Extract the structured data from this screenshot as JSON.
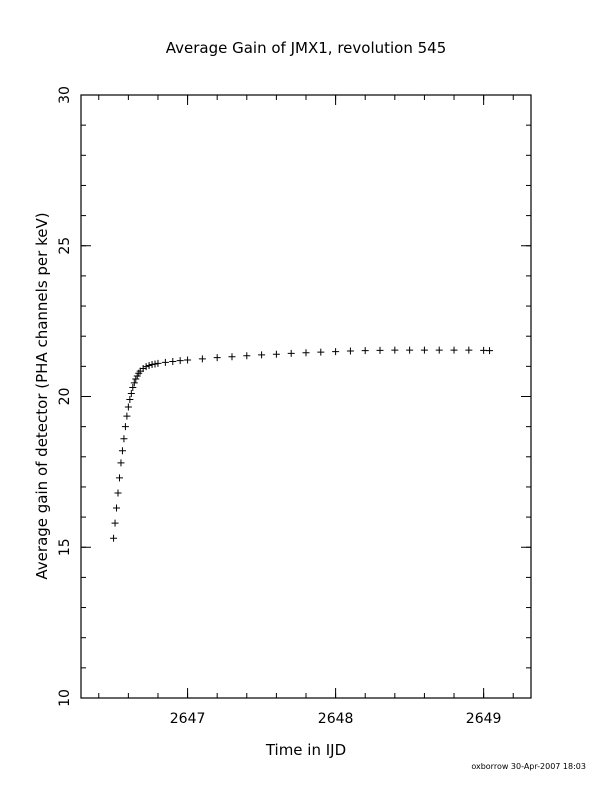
{
  "chart_data": {
    "type": "scatter",
    "marker": "plus",
    "title": "Average Gain of JMX1, revolution 545",
    "xlabel": "Time in IJD",
    "ylabel": "Average gain of detector (PHA channels per keV)",
    "xlim": [
      2646.28,
      2649.32
    ],
    "ylim": [
      10,
      30
    ],
    "xticks": [
      {
        "value": 2647,
        "label": "2647"
      },
      {
        "value": 2648,
        "label": "2648"
      },
      {
        "value": 2649,
        "label": "2649"
      }
    ],
    "yticks": [
      {
        "value": 10,
        "label": "10"
      },
      {
        "value": 15,
        "label": "15"
      },
      {
        "value": 20,
        "label": "20"
      },
      {
        "value": 25,
        "label": "25"
      },
      {
        "value": 30,
        "label": "30"
      }
    ],
    "x_minor_step": 0.2,
    "y_minor_step": 1,
    "grid": false,
    "series": [
      {
        "color": "#000000",
        "x": [
          2646.5,
          2646.51,
          2646.52,
          2646.53,
          2646.54,
          2646.55,
          2646.56,
          2646.57,
          2646.58,
          2646.59,
          2646.6,
          2646.61,
          2646.62,
          2646.63,
          2646.64,
          2646.65,
          2646.66,
          2646.67,
          2646.68,
          2646.7,
          2646.72,
          2646.74,
          2646.76,
          2646.78,
          2646.8,
          2646.85,
          2646.9,
          2646.95,
          2647.0,
          2647.1,
          2647.2,
          2647.3,
          2647.4,
          2647.5,
          2647.6,
          2647.7,
          2647.8,
          2647.9,
          2648.0,
          2648.1,
          2648.2,
          2648.3,
          2648.4,
          2648.5,
          2648.6,
          2648.7,
          2648.8,
          2648.9,
          2649.0,
          2649.04
        ],
        "y": [
          15.3,
          15.8,
          16.3,
          16.8,
          17.3,
          17.8,
          18.2,
          18.6,
          19.0,
          19.35,
          19.65,
          19.9,
          20.1,
          20.3,
          20.45,
          20.58,
          20.68,
          20.77,
          20.84,
          20.93,
          20.99,
          21.03,
          21.06,
          21.08,
          21.1,
          21.13,
          21.16,
          21.19,
          21.21,
          21.25,
          21.29,
          21.32,
          21.35,
          21.38,
          21.4,
          21.43,
          21.45,
          21.47,
          21.49,
          21.51,
          21.52,
          21.53,
          21.54,
          21.54,
          21.54,
          21.54,
          21.54,
          21.54,
          21.53,
          21.52
        ]
      }
    ]
  },
  "footer": "oxborrow 30-Apr-2007 18:03"
}
